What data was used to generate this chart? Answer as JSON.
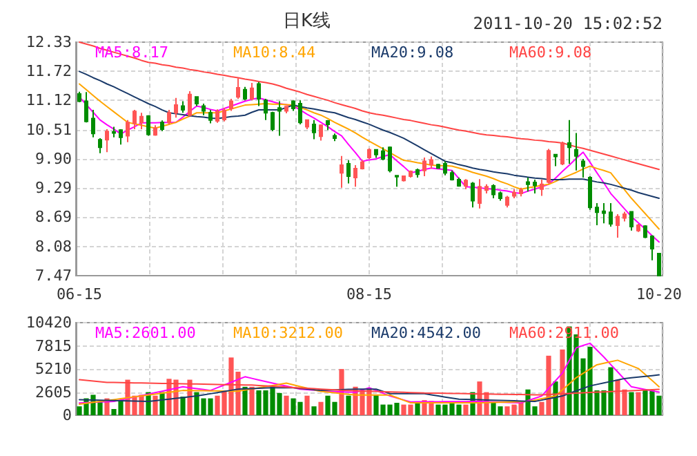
{
  "chart_data": [
    {
      "type": "candlestick",
      "title": "日K线",
      "annotations": [
        "2011-10-20 15:02:52"
      ],
      "categories": [
        "06-15",
        null,
        null,
        null,
        null,
        null,
        null,
        null,
        null,
        null,
        null,
        null,
        null,
        null,
        null,
        null,
        null,
        null,
        null,
        null,
        null,
        null,
        null,
        null,
        null,
        null,
        null,
        null,
        null,
        null,
        null,
        null,
        null,
        null,
        null,
        null,
        null,
        null,
        null,
        null,
        null,
        null,
        "08-15",
        null,
        null,
        null,
        null,
        null,
        null,
        null,
        null,
        null,
        null,
        null,
        null,
        null,
        null,
        null,
        null,
        null,
        null,
        null,
        null,
        null,
        null,
        null,
        null,
        null,
        null,
        null,
        null,
        null,
        null,
        null,
        null,
        null,
        null,
        null,
        null,
        null,
        null,
        null,
        null,
        null,
        "10-20"
      ],
      "ohlc": [
        [
          11.25,
          11.3,
          11.08,
          11.1
        ],
        [
          11.1,
          11.29,
          10.66,
          10.68
        ],
        [
          10.74,
          10.92,
          10.35,
          10.43
        ],
        [
          10.3,
          10.33,
          10.02,
          10.14
        ],
        [
          10.3,
          10.52,
          10.04,
          10.47
        ],
        [
          10.46,
          10.57,
          10.35,
          10.44
        ],
        [
          10.5,
          10.52,
          10.2,
          10.35
        ],
        [
          10.38,
          10.71,
          10.25,
          10.66
        ],
        [
          10.64,
          10.92,
          10.52,
          10.89
        ],
        [
          10.66,
          10.86,
          10.52,
          10.78
        ],
        [
          10.79,
          10.81,
          10.38,
          10.41
        ],
        [
          10.4,
          10.6,
          10.38,
          10.54
        ],
        [
          10.66,
          10.7,
          10.48,
          10.52
        ],
        [
          10.66,
          10.92,
          10.62,
          10.86
        ],
        [
          10.86,
          11.17,
          10.76,
          11.02
        ],
        [
          11.0,
          11.1,
          10.86,
          10.92
        ],
        [
          10.81,
          11.31,
          10.79,
          11.24
        ],
        [
          11.19,
          11.2,
          11.0,
          11.05
        ],
        [
          11.0,
          11.05,
          10.81,
          10.9
        ],
        [
          10.86,
          10.92,
          10.64,
          10.71
        ],
        [
          10.69,
          10.93,
          10.65,
          10.89
        ],
        [
          10.72,
          10.96,
          10.68,
          10.91
        ],
        [
          10.95,
          11.15,
          10.9,
          11.1
        ],
        [
          11.19,
          11.58,
          11.15,
          11.38
        ],
        [
          11.34,
          11.4,
          11.12,
          11.15
        ],
        [
          11.15,
          11.48,
          11.12,
          11.37
        ],
        [
          11.46,
          11.5,
          11.0,
          11.15
        ],
        [
          11.12,
          11.15,
          10.71,
          10.86
        ],
        [
          10.86,
          10.88,
          10.48,
          10.52
        ],
        [
          10.96,
          11.1,
          10.38,
          10.9
        ],
        [
          10.9,
          11.0,
          10.85,
          10.99
        ],
        [
          11.1,
          11.12,
          10.9,
          10.95
        ],
        [
          11.05,
          11.12,
          10.62,
          10.66
        ],
        [
          10.57,
          10.72,
          10.52,
          10.71
        ],
        [
          10.62,
          10.71,
          10.31,
          10.45
        ],
        [
          10.37,
          10.62,
          10.28,
          10.6
        ],
        [
          10.69,
          10.71,
          10.5,
          10.62
        ],
        [
          10.38,
          10.43,
          10.27,
          10.33
        ],
        [
          9.61,
          9.96,
          9.3,
          9.77
        ],
        [
          9.8,
          9.87,
          9.39,
          9.54
        ],
        [
          9.51,
          9.77,
          9.32,
          9.7
        ],
        [
          9.7,
          9.87,
          9.68,
          9.83
        ],
        [
          9.93,
          10.12,
          9.9,
          10.09
        ],
        [
          10.09,
          10.1,
          9.92,
          9.99
        ],
        [
          10.06,
          10.14,
          9.87,
          9.9
        ],
        [
          10.14,
          10.16,
          9.62,
          9.66
        ],
        [
          9.55,
          9.56,
          9.32,
          9.53
        ],
        [
          9.45,
          9.55,
          9.43,
          9.54
        ],
        [
          9.54,
          9.66,
          9.51,
          9.64
        ],
        [
          9.67,
          9.7,
          9.51,
          9.58
        ],
        [
          9.66,
          9.93,
          9.54,
          9.85
        ],
        [
          9.78,
          9.95,
          9.7,
          9.88
        ],
        [
          9.78,
          9.8,
          9.7,
          9.71
        ],
        [
          9.8,
          9.85,
          9.56,
          9.61
        ],
        [
          9.61,
          9.66,
          9.45,
          9.47
        ],
        [
          9.47,
          9.51,
          9.32,
          9.34
        ],
        [
          9.34,
          9.48,
          9.27,
          9.45
        ],
        [
          9.39,
          9.42,
          8.89,
          9.03
        ],
        [
          8.98,
          9.48,
          8.87,
          9.32
        ],
        [
          9.25,
          9.37,
          9.18,
          9.32
        ],
        [
          9.34,
          9.37,
          9.08,
          9.16
        ],
        [
          9.19,
          9.22,
          9.03,
          9.08
        ],
        [
          8.94,
          9.13,
          8.89,
          9.1
        ],
        [
          9.13,
          9.27,
          9.08,
          9.2
        ],
        [
          9.18,
          9.3,
          9.12,
          9.25
        ],
        [
          9.42,
          9.51,
          9.22,
          9.37
        ],
        [
          9.41,
          9.47,
          9.18,
          9.35
        ],
        [
          9.27,
          9.47,
          9.13,
          9.37
        ],
        [
          9.42,
          10.11,
          9.39,
          10.07
        ],
        [
          9.99,
          10.0,
          9.75,
          9.95
        ],
        [
          9.8,
          10.26,
          9.77,
          10.23
        ],
        [
          10.23,
          10.71,
          9.8,
          10.14
        ],
        [
          10.09,
          10.44,
          9.66,
          9.96
        ],
        [
          9.85,
          9.9,
          9.51,
          9.75
        ],
        [
          9.51,
          9.54,
          8.84,
          8.89
        ],
        [
          8.89,
          8.98,
          8.52,
          8.79
        ],
        [
          8.81,
          8.98,
          8.56,
          8.77
        ],
        [
          8.79,
          8.98,
          8.49,
          8.55
        ],
        [
          8.52,
          8.75,
          8.26,
          8.7
        ],
        [
          8.67,
          8.8,
          8.6,
          8.75
        ],
        [
          8.8,
          8.8,
          8.41,
          8.49
        ],
        [
          8.41,
          8.55,
          8.38,
          8.52
        ],
        [
          8.5,
          8.52,
          8.25,
          8.27
        ],
        [
          8.29,
          8.31,
          7.79,
          8.03
        ],
        [
          7.93,
          7.93,
          7.47,
          7.47
        ]
      ],
      "colors": [
        "#008c00",
        "#008c00",
        "#008c00",
        "#008c00",
        "#ff5555",
        "#008c00",
        "#008c00",
        "#ff5555",
        "#ff5555",
        "#ff5555",
        "#008c00",
        "#ff5555",
        "#008c00",
        "#ff5555",
        "#ff5555",
        "#008c00",
        "#ff5555",
        "#008c00",
        "#008c00",
        "#008c00",
        "#ff5555",
        "#ff5555",
        "#ff5555",
        "#ff5555",
        "#008c00",
        "#ff5555",
        "#008c00",
        "#008c00",
        "#008c00",
        "#008c00",
        "#ff5555",
        "#008c00",
        "#008c00",
        "#ff5555",
        "#008c00",
        "#ff5555",
        "#008c00",
        "#008c00",
        "#ff5555",
        "#008c00",
        "#ff5555",
        "#ff5555",
        "#ff5555",
        "#008c00",
        "#008c00",
        "#008c00",
        "#008c00",
        "#ff5555",
        "#ff5555",
        "#008c00",
        "#ff5555",
        "#ff5555",
        "#008c00",
        "#008c00",
        "#008c00",
        "#008c00",
        "#ff5555",
        "#008c00",
        "#ff5555",
        "#ff5555",
        "#008c00",
        "#008c00",
        "#ff5555",
        "#ff5555",
        "#ff5555",
        "#008c00",
        "#008c00",
        "#ff5555",
        "#ff5555",
        "#008c00",
        "#ff5555",
        "#008c00",
        "#008c00",
        "#008c00",
        "#008c00",
        "#008c00",
        "#008c00",
        "#008c00",
        "#ff5555",
        "#ff5555",
        "#008c00",
        "#ff5555",
        "#008c00",
        "#008c00",
        "#008c00"
      ],
      "ylim": [
        7.47,
        12.33
      ],
      "yticks": [
        7.47,
        8.08,
        8.69,
        9.29,
        {
          "value": 9.9,
          "label": "9.90"
        },
        10.51,
        11.12,
        11.72,
        12.33
      ],
      "grid": true,
      "legend": "top",
      "series": [
        {
          "name": "MA5:8.17",
          "type": "line",
          "color": "#ff00ff",
          "values": [
            11.19,
            11.03,
            10.87,
            10.71,
            10.61,
            10.52,
            10.42,
            10.5,
            10.57,
            10.65,
            10.65,
            10.65,
            10.66,
            10.66,
            10.66,
            10.77,
            10.89,
            11.0,
            10.97,
            10.93,
            10.9,
            10.95,
            11.0,
            11.05,
            11.1,
            11.14,
            11.17,
            11.13,
            11.09,
            11.05,
            11.03,
            11.0,
            10.92,
            10.83,
            10.75,
            10.66,
            10.57,
            10.47,
            10.38,
            10.2,
            10.03,
            9.85,
            9.88,
            9.9,
            9.95,
            9.99,
            9.86,
            9.74,
            9.61,
            9.64,
            9.68,
            9.71,
            9.69,
            9.68,
            9.66,
            9.49,
            9.32,
            9.31,
            9.3,
            9.28,
            9.27,
            9.25,
            9.23,
            9.2,
            9.18,
            9.23,
            9.27,
            9.32,
            9.37,
            9.5,
            9.64,
            9.77,
            9.91,
            10.04,
            9.83,
            9.61,
            9.4,
            9.18,
            9.02,
            8.86,
            8.7,
            8.57,
            8.44,
            8.3,
            8.17
          ]
        },
        {
          "name": "MA10:8.44",
          "type": "line",
          "color": "#ffa500",
          "values": [
            11.46,
            11.34,
            11.22,
            11.1,
            10.99,
            10.88,
            10.77,
            10.66,
            10.63,
            10.6,
            10.57,
            10.54,
            10.58,
            10.62,
            10.66,
            10.73,
            10.79,
            10.86,
            10.86,
            10.86,
            10.86,
            10.9,
            10.94,
            10.98,
            11.02,
            11.03,
            11.04,
            11.05,
            11.04,
            11.04,
            11.03,
            11.02,
            10.97,
            10.92,
            10.86,
            10.81,
            10.74,
            10.66,
            10.59,
            10.52,
            10.44,
            10.35,
            10.27,
            10.19,
            10.11,
            10.03,
            9.95,
            9.87,
            9.85,
            9.82,
            9.8,
            9.77,
            9.76,
            9.76,
            9.75,
            9.71,
            9.67,
            9.62,
            9.58,
            9.54,
            9.49,
            9.43,
            9.38,
            9.32,
            9.27,
            9.3,
            9.32,
            9.35,
            9.37,
            9.43,
            9.5,
            9.56,
            9.62,
            9.69,
            9.75,
            9.7,
            9.66,
            9.61,
            9.43,
            9.26,
            9.08,
            8.92,
            8.76,
            8.6,
            8.44
          ]
        },
        {
          "name": "MA20:9.08",
          "type": "line",
          "color": "#1a3a6a",
          "values": [
            11.72,
            11.66,
            11.59,
            11.53,
            11.46,
            11.4,
            11.33,
            11.26,
            11.19,
            11.12,
            11.05,
            10.99,
            10.92,
            10.86,
            10.84,
            10.82,
            10.8,
            10.78,
            10.77,
            10.75,
            10.74,
            10.76,
            10.78,
            10.79,
            10.81,
            10.87,
            10.92,
            10.92,
            10.92,
            10.92,
            10.97,
            11.02,
            10.99,
            10.96,
            10.94,
            10.91,
            10.88,
            10.86,
            10.81,
            10.76,
            10.72,
            10.67,
            10.62,
            10.56,
            10.5,
            10.45,
            10.39,
            10.33,
            10.25,
            10.17,
            10.09,
            10.01,
            9.93,
            9.85,
            9.82,
            9.78,
            9.75,
            9.71,
            9.68,
            9.66,
            9.63,
            9.61,
            9.59,
            9.56,
            9.54,
            9.52,
            9.5,
            9.49,
            9.47,
            9.47,
            9.47,
            9.48,
            9.48,
            9.48,
            9.45,
            9.42,
            9.4,
            9.37,
            9.33,
            9.29,
            9.25,
            9.2,
            9.16,
            9.12,
            9.08
          ]
        },
        {
          "name": "MA60:9.08",
          "type": "line",
          "color": "#ff4444",
          "values": [
            12.33,
            12.29,
            12.25,
            12.2,
            12.16,
            12.12,
            12.08,
            12.04,
            12.0,
            11.95,
            11.91,
            11.89,
            11.86,
            11.84,
            11.81,
            11.79,
            11.76,
            11.74,
            11.71,
            11.69,
            11.66,
            11.64,
            11.61,
            11.59,
            11.56,
            11.54,
            11.51,
            11.49,
            11.46,
            11.42,
            11.37,
            11.33,
            11.29,
            11.24,
            11.2,
            11.16,
            11.12,
            11.07,
            11.03,
            10.99,
            10.95,
            10.9,
            10.86,
            10.83,
            10.81,
            10.78,
            10.75,
            10.72,
            10.7,
            10.67,
            10.64,
            10.61,
            10.59,
            10.56,
            10.53,
            10.5,
            10.48,
            10.45,
            10.42,
            10.4,
            10.39,
            10.37,
            10.36,
            10.34,
            10.32,
            10.31,
            10.29,
            10.28,
            10.26,
            10.25,
            10.23,
            10.19,
            10.15,
            10.12,
            10.08,
            10.04,
            10.0,
            9.96,
            9.92,
            9.88,
            9.84,
            9.8,
            9.76,
            9.72,
            9.68
          ]
        }
      ]
    },
    {
      "type": "bar",
      "tick_labels": "y",
      "categories": [
        null,
        null,
        null,
        null,
        null,
        null,
        null,
        null,
        null,
        null,
        null,
        null,
        null,
        null,
        null,
        null,
        null,
        null,
        null,
        null,
        null,
        null,
        null,
        null,
        null,
        null,
        null,
        null,
        null,
        null,
        null,
        null,
        null,
        null,
        null,
        null,
        null,
        null,
        null,
        null,
        null,
        null,
        null,
        null,
        null,
        null,
        null,
        null,
        null,
        null,
        null,
        null,
        null,
        null,
        null,
        null,
        null,
        null,
        null,
        null,
        null,
        null,
        null,
        null,
        null,
        null,
        null,
        null,
        null,
        null,
        null,
        null,
        null,
        null,
        null,
        null,
        null,
        null,
        null,
        null,
        null,
        null,
        null,
        null,
        null
      ],
      "values": [
        1000,
        1900,
        2300,
        1500,
        1900,
        700,
        1700,
        4000,
        2200,
        2300,
        2600,
        2200,
        2600,
        4100,
        4000,
        2100,
        4000,
        2600,
        1900,
        1900,
        2200,
        2700,
        6500,
        4900,
        3200,
        3200,
        2800,
        2800,
        3200,
        2500,
        2200,
        1900,
        1500,
        2200,
        1000,
        1500,
        2200,
        1500,
        5200,
        2200,
        3200,
        2700,
        3000,
        2300,
        1200,
        1200,
        1400,
        1200,
        1200,
        1500,
        1700,
        1600,
        1200,
        1200,
        1500,
        1200,
        1200,
        2600,
        3800,
        2600,
        1500,
        1000,
        1000,
        1200,
        1400,
        2900,
        1000,
        1500,
        6700,
        3800,
        7400,
        10000,
        9100,
        6400,
        7700,
        2800,
        2800,
        5400,
        4000,
        2900,
        2600,
        2600,
        2800,
        2800,
        2200
      ],
      "colors": [
        "#008c00",
        "#008c00",
        "#008c00",
        "#008c00",
        "#ff5555",
        "#008c00",
        "#008c00",
        "#ff5555",
        "#ff5555",
        "#ff5555",
        "#008c00",
        "#ff5555",
        "#008c00",
        "#ff5555",
        "#ff5555",
        "#008c00",
        "#ff5555",
        "#008c00",
        "#008c00",
        "#008c00",
        "#ff5555",
        "#ff5555",
        "#ff5555",
        "#ff5555",
        "#008c00",
        "#ff5555",
        "#008c00",
        "#008c00",
        "#008c00",
        "#008c00",
        "#ff5555",
        "#008c00",
        "#008c00",
        "#ff5555",
        "#008c00",
        "#ff5555",
        "#008c00",
        "#008c00",
        "#ff5555",
        "#008c00",
        "#ff5555",
        "#ff5555",
        "#ff5555",
        "#008c00",
        "#008c00",
        "#008c00",
        "#008c00",
        "#ff5555",
        "#ff5555",
        "#008c00",
        "#ff5555",
        "#ff5555",
        "#008c00",
        "#008c00",
        "#008c00",
        "#008c00",
        "#ff5555",
        "#008c00",
        "#ff5555",
        "#ff5555",
        "#008c00",
        "#008c00",
        "#ff5555",
        "#ff5555",
        "#ff5555",
        "#008c00",
        "#008c00",
        "#ff5555",
        "#ff5555",
        "#008c00",
        "#ff5555",
        "#008c00",
        "#008c00",
        "#008c00",
        "#008c00",
        "#008c00",
        "#008c00",
        "#008c00",
        "#ff5555",
        "#ff5555",
        "#008c00",
        "#ff5555",
        "#008c00",
        "#008c00",
        "#008c00"
      ],
      "ylim": [
        0,
        10420
      ],
      "yticks": [
        0,
        2605,
        5210,
        7815,
        10420
      ],
      "grid": true,
      "legend": "top",
      "series": [
        {
          "name": "MA5:2601.00",
          "type": "line",
          "color": "#ff00ff",
          "values": [
            1390,
            1420,
            1460,
            1490,
            1520,
            1550,
            1720,
            1880,
            2050,
            2210,
            2380,
            2540,
            2710,
            2870,
            3040,
            3200,
            3100,
            3000,
            2890,
            2790,
            3100,
            3400,
            3710,
            4020,
            4330,
            4150,
            3970,
            3790,
            3610,
            3440,
            3280,
            3110,
            2940,
            2880,
            2810,
            2750,
            2680,
            2660,
            2630,
            2610,
            2580,
            2840,
            3100,
            2790,
            2480,
            2170,
            1940,
            1720,
            1500,
            1510,
            1510,
            1520,
            1520,
            1530,
            1530,
            1540,
            1540,
            1550,
            1550,
            1520,
            1500,
            1470,
            1440,
            1420,
            1390,
            1650,
            1910,
            2170,
            3030,
            3890,
            4750,
            6170,
            7590,
            7850,
            8100,
            7330,
            6550,
            5710,
            4880,
            4040,
            3200,
            3050,
            2900,
            2750,
            2600
          ]
        },
        {
          "name": "MA10:3212.00",
          "type": "line",
          "color": "#ffa500",
          "values": [
            1240,
            1340,
            1450,
            1550,
            1650,
            1760,
            1860,
            1960,
            2070,
            2170,
            2270,
            2380,
            2480,
            2580,
            2690,
            2790,
            2780,
            2770,
            2760,
            2750,
            2740,
            2720,
            2710,
            2700,
            2830,
            2960,
            3090,
            3220,
            3350,
            3480,
            3610,
            3420,
            3230,
            3050,
            2860,
            2680,
            2600,
            2520,
            2430,
            2350,
            2270,
            2270,
            2270,
            2270,
            2270,
            2270,
            1980,
            1680,
            1390,
            1390,
            1390,
            1390,
            1390,
            1390,
            1390,
            1390,
            1390,
            1390,
            1390,
            1410,
            1440,
            1460,
            1480,
            1500,
            1530,
            1550,
            1700,
            1860,
            2010,
            2170,
            2860,
            3540,
            4230,
            4710,
            5200,
            5680,
            5850,
            6020,
            6190,
            5880,
            5570,
            5260,
            4580,
            3900,
            3210
          ]
        },
        {
          "name": "MA20:4542.00",
          "type": "line",
          "color": "#1a3a6a",
          "values": [
            1750,
            1730,
            1710,
            1690,
            1670,
            1650,
            1630,
            1610,
            1590,
            1570,
            1550,
            1640,
            1730,
            1810,
            1900,
            1990,
            2080,
            2170,
            2300,
            2420,
            2550,
            2680,
            2810,
            2940,
            2970,
            3000,
            3040,
            3070,
            3100,
            3100,
            3100,
            3100,
            3020,
            2950,
            2870,
            2790,
            2820,
            2850,
            2880,
            2910,
            2940,
            2940,
            2940,
            2940,
            2690,
            2430,
            2430,
            2430,
            2430,
            2430,
            2430,
            2300,
            2170,
            2050,
            1920,
            1800,
            1780,
            1760,
            1740,
            1710,
            1690,
            1670,
            1650,
            1630,
            1600,
            1580,
            1550,
            1700,
            1860,
            2010,
            2170,
            2450,
            2740,
            3020,
            3300,
            3470,
            3630,
            3800,
            3960,
            4130,
            4210,
            4290,
            4380,
            4460,
            4540
          ]
        },
        {
          "name": "MA60:2911.00",
          "type": "line",
          "color": "#ff4444",
          "values": [
            4000,
            3930,
            3850,
            3780,
            3700,
            3690,
            3670,
            3660,
            3640,
            3630,
            3610,
            3600,
            3580,
            3570,
            3550,
            3540,
            3520,
            3510,
            3490,
            3480,
            3460,
            3450,
            3430,
            3420,
            3410,
            3400,
            3350,
            3310,
            3260,
            3220,
            3170,
            3120,
            3080,
            3030,
            2990,
            2940,
            2890,
            2850,
            2800,
            2780,
            2750,
            2730,
            2700,
            2680,
            2650,
            2630,
            2600,
            2580,
            2550,
            2530,
            2500,
            2490,
            2480,
            2460,
            2450,
            2440,
            2430,
            2410,
            2400,
            2390,
            2380,
            2360,
            2350,
            2340,
            2330,
            2310,
            2300,
            2300,
            2340,
            2380,
            2410,
            2450,
            2490,
            2530,
            2560,
            2600,
            2630,
            2670,
            2700,
            2730,
            2770,
            2800,
            2840,
            2870,
            2910
          ]
        }
      ]
    }
  ]
}
